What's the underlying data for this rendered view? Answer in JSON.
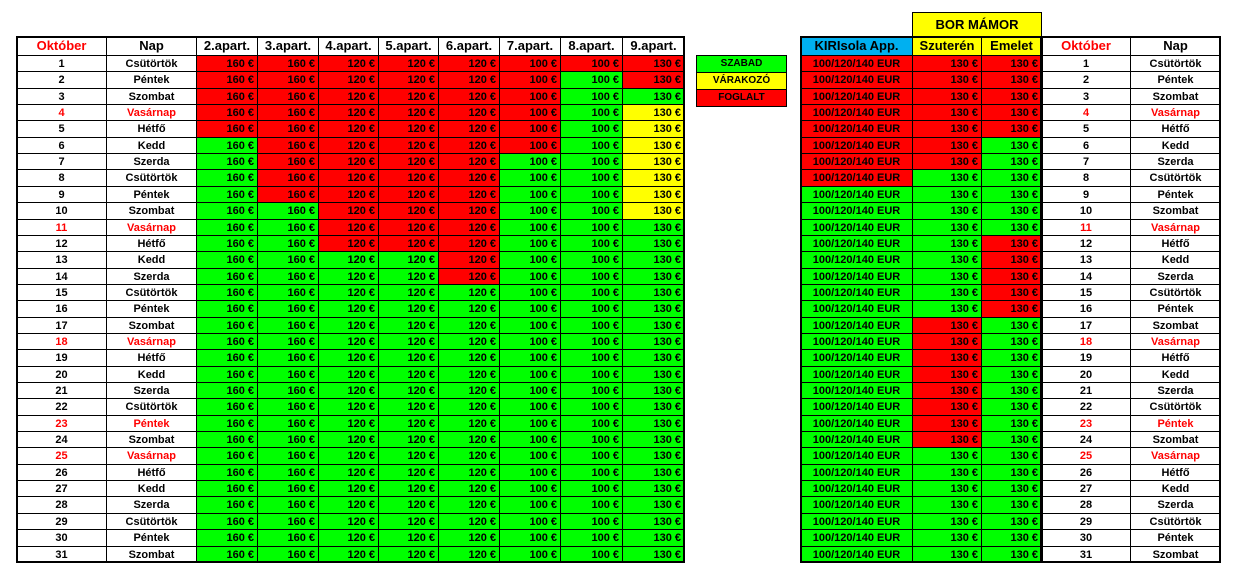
{
  "left_header": [
    "Október",
    "Nap",
    "2.apart.",
    "3.apart.",
    "4.apart.",
    "5.apart.",
    "6.apart.",
    "7.apart.",
    "8.apart.",
    "9.apart."
  ],
  "right_group": "BOR  MÁMOR",
  "right_header": [
    "KIRIsola App.",
    "Szuterén",
    "Emelet",
    "Október",
    "Nap"
  ],
  "legend": [
    {
      "label": "SZABAD",
      "status": "G"
    },
    {
      "label": "VÁRAKOZÓ",
      "status": "Y"
    },
    {
      "label": "FOGLALT",
      "status": "R"
    }
  ],
  "palette": {
    "R": "#ff0000",
    "G": "#00ff00",
    "Y": "#ffff00",
    "header_blue": "#00b0f0",
    "holiday_text": "#ff0000"
  },
  "rows": [
    {
      "day": "1",
      "name": "Csütörtök",
      "apart": [
        "160 €",
        "160 €",
        "120 €",
        "120 €",
        "120 €",
        "100 €",
        "100 €",
        "130 €"
      ],
      "apart_status": "RRRRRRRR",
      "bor": [
        "100/120/140 EUR",
        "130 €",
        "130 €"
      ],
      "bor_status": "RRR"
    },
    {
      "day": "2",
      "name": "Péntek",
      "apart": [
        "160 €",
        "160 €",
        "120 €",
        "120 €",
        "120 €",
        "100 €",
        "100 €",
        "130 €"
      ],
      "apart_status": "RRRRRRGR",
      "bor": [
        "100/120/140 EUR",
        "130 €",
        "130 €"
      ],
      "bor_status": "RRR"
    },
    {
      "day": "3",
      "name": "Szombat",
      "apart": [
        "160 €",
        "160 €",
        "120 €",
        "120 €",
        "120 €",
        "100 €",
        "100 €",
        "130 €"
      ],
      "apart_status": "RRRRRRGG",
      "bor": [
        "100/120/140 EUR",
        "130 €",
        "130 €"
      ],
      "bor_status": "RRR"
    },
    {
      "day": "4",
      "name": "Vasárnap",
      "holiday": true,
      "apart": [
        "160 €",
        "160 €",
        "120 €",
        "120 €",
        "120 €",
        "100 €",
        "100 €",
        "130 €"
      ],
      "apart_status": "RRRRRRGY",
      "bor": [
        "100/120/140 EUR",
        "130 €",
        "130 €"
      ],
      "bor_status": "RRR"
    },
    {
      "day": "5",
      "name": "Hétfő",
      "apart": [
        "160 €",
        "160 €",
        "120 €",
        "120 €",
        "120 €",
        "100 €",
        "100 €",
        "130 €"
      ],
      "apart_status": "RRRRRRGY",
      "bor": [
        "100/120/140 EUR",
        "130 €",
        "130 €"
      ],
      "bor_status": "RRR"
    },
    {
      "day": "6",
      "name": "Kedd",
      "apart": [
        "160 €",
        "160 €",
        "120 €",
        "120 €",
        "120 €",
        "100 €",
        "100 €",
        "130 €"
      ],
      "apart_status": "GRRRRRGY",
      "bor": [
        "100/120/140 EUR",
        "130 €",
        "130 €"
      ],
      "bor_status": "RRG"
    },
    {
      "day": "7",
      "name": "Szerda",
      "apart": [
        "160 €",
        "160 €",
        "120 €",
        "120 €",
        "120 €",
        "100 €",
        "100 €",
        "130 €"
      ],
      "apart_status": "GRRRRGGY",
      "bor": [
        "100/120/140 EUR",
        "130 €",
        "130 €"
      ],
      "bor_status": "RRG"
    },
    {
      "day": "8",
      "name": "Csütörtök",
      "apart": [
        "160 €",
        "160 €",
        "120 €",
        "120 €",
        "120 €",
        "100 €",
        "100 €",
        "130 €"
      ],
      "apart_status": "GRRRRGGY",
      "bor": [
        "100/120/140 EUR",
        "130 €",
        "130 €"
      ],
      "bor_status": "RGG"
    },
    {
      "day": "9",
      "name": "Péntek",
      "apart": [
        "160 €",
        "160 €",
        "120 €",
        "120 €",
        "120 €",
        "100 €",
        "100 €",
        "130 €"
      ],
      "apart_status": "GRRRRGGY",
      "bor": [
        "100/120/140 EUR",
        "130 €",
        "130 €"
      ],
      "bor_status": "GGG"
    },
    {
      "day": "10",
      "name": "Szombat",
      "apart": [
        "160 €",
        "160 €",
        "120 €",
        "120 €",
        "120 €",
        "100 €",
        "100 €",
        "130 €"
      ],
      "apart_status": "GGRRRGGY",
      "bor": [
        "100/120/140 EUR",
        "130 €",
        "130 €"
      ],
      "bor_status": "GGG"
    },
    {
      "day": "11",
      "name": "Vasárnap",
      "holiday": true,
      "apart": [
        "160 €",
        "160 €",
        "120 €",
        "120 €",
        "120 €",
        "100 €",
        "100 €",
        "130 €"
      ],
      "apart_status": "GGRRRGGG",
      "bor": [
        "100/120/140 EUR",
        "130 €",
        "130 €"
      ],
      "bor_status": "GGG"
    },
    {
      "day": "12",
      "name": "Hétfő",
      "apart": [
        "160 €",
        "160 €",
        "120 €",
        "120 €",
        "120 €",
        "100 €",
        "100 €",
        "130 €"
      ],
      "apart_status": "GGRRRGGG",
      "bor": [
        "100/120/140 EUR",
        "130 €",
        "130 €"
      ],
      "bor_status": "GGR"
    },
    {
      "day": "13",
      "name": "Kedd",
      "apart": [
        "160 €",
        "160 €",
        "120 €",
        "120 €",
        "120 €",
        "100 €",
        "100 €",
        "130 €"
      ],
      "apart_status": "GGGGRGGG",
      "bor": [
        "100/120/140 EUR",
        "130 €",
        "130 €"
      ],
      "bor_status": "GGR"
    },
    {
      "day": "14",
      "name": "Szerda",
      "apart": [
        "160 €",
        "160 €",
        "120 €",
        "120 €",
        "120 €",
        "100 €",
        "100 €",
        "130 €"
      ],
      "apart_status": "GGGGRGGG",
      "bor": [
        "100/120/140 EUR",
        "130 €",
        "130 €"
      ],
      "bor_status": "GGR"
    },
    {
      "day": "15",
      "name": "Csütörtök",
      "apart": [
        "160 €",
        "160 €",
        "120 €",
        "120 €",
        "120 €",
        "100 €",
        "100 €",
        "130 €"
      ],
      "apart_status": "GGGGGGGG",
      "bor": [
        "100/120/140 EUR",
        "130 €",
        "130 €"
      ],
      "bor_status": "GGR"
    },
    {
      "day": "16",
      "name": "Péntek",
      "apart": [
        "160 €",
        "160 €",
        "120 €",
        "120 €",
        "120 €",
        "100 €",
        "100 €",
        "130 €"
      ],
      "apart_status": "GGGGGGGG",
      "bor": [
        "100/120/140 EUR",
        "130 €",
        "130 €"
      ],
      "bor_status": "GGR"
    },
    {
      "day": "17",
      "name": "Szombat",
      "apart": [
        "160 €",
        "160 €",
        "120 €",
        "120 €",
        "120 €",
        "100 €",
        "100 €",
        "130 €"
      ],
      "apart_status": "GGGGGGGG",
      "bor": [
        "100/120/140 EUR",
        "130 €",
        "130 €"
      ],
      "bor_status": "GRG"
    },
    {
      "day": "18",
      "name": "Vasárnap",
      "holiday": true,
      "apart": [
        "160 €",
        "160 €",
        "120 €",
        "120 €",
        "120 €",
        "100 €",
        "100 €",
        "130 €"
      ],
      "apart_status": "GGGGGGGG",
      "bor": [
        "100/120/140 EUR",
        "130 €",
        "130 €"
      ],
      "bor_status": "GRG"
    },
    {
      "day": "19",
      "name": "Hétfő",
      "apart": [
        "160 €",
        "160 €",
        "120 €",
        "120 €",
        "120 €",
        "100 €",
        "100 €",
        "130 €"
      ],
      "apart_status": "GGGGGGGG",
      "bor": [
        "100/120/140 EUR",
        "130 €",
        "130 €"
      ],
      "bor_status": "GRG"
    },
    {
      "day": "20",
      "name": "Kedd",
      "apart": [
        "160 €",
        "160 €",
        "120 €",
        "120 €",
        "120 €",
        "100 €",
        "100 €",
        "130 €"
      ],
      "apart_status": "GGGGGGGG",
      "bor": [
        "100/120/140 EUR",
        "130 €",
        "130 €"
      ],
      "bor_status": "GRG"
    },
    {
      "day": "21",
      "name": "Szerda",
      "apart": [
        "160 €",
        "160 €",
        "120 €",
        "120 €",
        "120 €",
        "100 €",
        "100 €",
        "130 €"
      ],
      "apart_status": "GGGGGGGG",
      "bor": [
        "100/120/140 EUR",
        "130 €",
        "130 €"
      ],
      "bor_status": "GRG"
    },
    {
      "day": "22",
      "name": "Csütörtök",
      "apart": [
        "160 €",
        "160 €",
        "120 €",
        "120 €",
        "120 €",
        "100 €",
        "100 €",
        "130 €"
      ],
      "apart_status": "GGGGGGGG",
      "bor": [
        "100/120/140 EUR",
        "130 €",
        "130 €"
      ],
      "bor_status": "GRG"
    },
    {
      "day": "23",
      "name": "Péntek",
      "holiday": true,
      "apart": [
        "160 €",
        "160 €",
        "120 €",
        "120 €",
        "120 €",
        "100 €",
        "100 €",
        "130 €"
      ],
      "apart_status": "GGGGGGGG",
      "bor": [
        "100/120/140 EUR",
        "130 €",
        "130 €"
      ],
      "bor_status": "GRG"
    },
    {
      "day": "24",
      "name": "Szombat",
      "apart": [
        "160 €",
        "160 €",
        "120 €",
        "120 €",
        "120 €",
        "100 €",
        "100 €",
        "130 €"
      ],
      "apart_status": "GGGGGGGG",
      "bor": [
        "100/120/140 EUR",
        "130 €",
        "130 €"
      ],
      "bor_status": "GRG"
    },
    {
      "day": "25",
      "name": "Vasárnap",
      "holiday": true,
      "apart": [
        "160 €",
        "160 €",
        "120 €",
        "120 €",
        "120 €",
        "100 €",
        "100 €",
        "130 €"
      ],
      "apart_status": "GGGGGGGG",
      "bor": [
        "100/120/140 EUR",
        "130 €",
        "130 €"
      ],
      "bor_status": "GGG"
    },
    {
      "day": "26",
      "name": "Hétfő",
      "apart": [
        "160 €",
        "160 €",
        "120 €",
        "120 €",
        "120 €",
        "100 €",
        "100 €",
        "130 €"
      ],
      "apart_status": "GGGGGGGG",
      "bor": [
        "100/120/140 EUR",
        "130 €",
        "130 €"
      ],
      "bor_status": "GGG"
    },
    {
      "day": "27",
      "name": "Kedd",
      "apart": [
        "160 €",
        "160 €",
        "120 €",
        "120 €",
        "120 €",
        "100 €",
        "100 €",
        "130 €"
      ],
      "apart_status": "GGGGGGGG",
      "bor": [
        "100/120/140 EUR",
        "130 €",
        "130 €"
      ],
      "bor_status": "GGG"
    },
    {
      "day": "28",
      "name": "Szerda",
      "apart": [
        "160 €",
        "160 €",
        "120 €",
        "120 €",
        "120 €",
        "100 €",
        "100 €",
        "130 €"
      ],
      "apart_status": "GGGGGGGG",
      "bor": [
        "100/120/140 EUR",
        "130 €",
        "130 €"
      ],
      "bor_status": "GGG"
    },
    {
      "day": "29",
      "name": "Csütörtök",
      "apart": [
        "160 €",
        "160 €",
        "120 €",
        "120 €",
        "120 €",
        "100 €",
        "100 €",
        "130 €"
      ],
      "apart_status": "GGGGGGGG",
      "bor": [
        "100/120/140 EUR",
        "130 €",
        "130 €"
      ],
      "bor_status": "GGG"
    },
    {
      "day": "30",
      "name": "Péntek",
      "apart": [
        "160 €",
        "160 €",
        "120 €",
        "120 €",
        "120 €",
        "100 €",
        "100 €",
        "130 €"
      ],
      "apart_status": "GGGGGGGG",
      "bor": [
        "100/120/140 EUR",
        "130 €",
        "130 €"
      ],
      "bor_status": "GGG"
    },
    {
      "day": "31",
      "name": "Szombat",
      "apart": [
        "160 €",
        "160 €",
        "120 €",
        "120 €",
        "120 €",
        "100 €",
        "100 €",
        "130 €"
      ],
      "apart_status": "GGGGGGGG",
      "bor": [
        "100/120/140 EUR",
        "130 €",
        "130 €"
      ],
      "bor_status": "GGG"
    }
  ]
}
